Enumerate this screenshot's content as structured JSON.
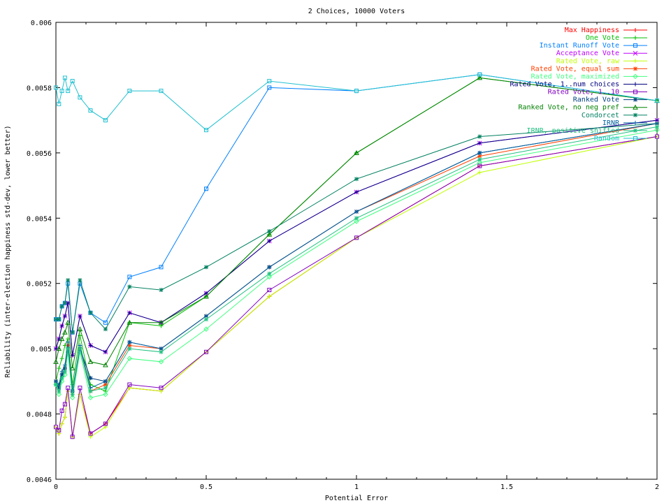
{
  "chart_data": {
    "type": "line",
    "title": "2 Choices, 10000 Voters",
    "xlabel": "Potential Error",
    "ylabel": "Reliability (inter-election happiness std-dev, lower better)",
    "xlim": [
      0,
      2
    ],
    "ylim": [
      0.0046,
      0.006
    ],
    "xticks": [
      "0",
      "0.5",
      "1",
      "1.5",
      "2"
    ],
    "yticks": [
      "0.0046",
      "0.0048",
      "0.005",
      "0.0052",
      "0.0054",
      "0.0056",
      "0.0058",
      "0.006"
    ],
    "grid": false,
    "legend_position": "top-right",
    "x": [
      0,
      0.01,
      0.02,
      0.03,
      0.04,
      0.055,
      0.08,
      0.115,
      0.165,
      0.245,
      0.35,
      0.5,
      0.71,
      1.0,
      1.41,
      2.0
    ],
    "series": [
      {
        "name": "Max Happiness",
        "color": "#ff0000",
        "marker": "plus",
        "values": [
          0.00476,
          0.00474,
          0.00477,
          0.00479,
          0.00487,
          0.00473,
          0.00486,
          0.00474,
          0.00477,
          0.00488,
          0.00487,
          0.00499,
          0.00516,
          0.00534,
          0.00556,
          0.00565
        ]
      },
      {
        "name": "One Vote",
        "color": "#00c000",
        "marker": "plus",
        "values": [
          0.0049,
          0.00494,
          0.00497,
          0.00501,
          0.00503,
          0.00489,
          0.00504,
          0.00489,
          0.00487,
          0.00508,
          0.00507,
          0.00516,
          0.00535,
          0.0056,
          0.00583,
          0.00576
        ]
      },
      {
        "name": "Instant Runoff Vote",
        "color": "#0080ff",
        "marker": "square",
        "values": [
          0.00509,
          0.00509,
          0.00513,
          0.00514,
          0.0052,
          0.00505,
          0.0052,
          0.00511,
          0.00508,
          0.00522,
          0.00525,
          0.00549,
          0.0058,
          0.00579,
          0.00584,
          0.00576
        ]
      },
      {
        "name": "Acceptance Vote",
        "color": "#c000ff",
        "marker": "x",
        "values": [
          0.005,
          0.00503,
          0.00507,
          0.0051,
          0.00514,
          0.00498,
          0.0051,
          0.00501,
          0.00499,
          0.00511,
          0.00508,
          0.00517,
          0.00533,
          0.00548,
          0.00563,
          0.0057
        ]
      },
      {
        "name": "Rated Vote, raw",
        "color": "#c0ff00",
        "marker": "plus",
        "values": [
          0.00476,
          0.00474,
          0.00477,
          0.00479,
          0.00487,
          0.00473,
          0.00486,
          0.00473,
          0.00476,
          0.00488,
          0.00487,
          0.00499,
          0.00516,
          0.00534,
          0.00554,
          0.00565
        ]
      },
      {
        "name": "Rated Vote, equal sum",
        "color": "#ff4000",
        "marker": "star",
        "values": [
          0.0049,
          0.00489,
          0.00492,
          0.00494,
          0.00501,
          0.00486,
          0.005,
          0.00487,
          0.00489,
          0.00501,
          0.005,
          0.0051,
          0.00525,
          0.00542,
          0.00559,
          0.00569
        ]
      },
      {
        "name": "Rated Vote, maximized",
        "color": "#40ff80",
        "marker": "diamond",
        "values": [
          0.00489,
          0.00486,
          0.0049,
          0.00492,
          0.00499,
          0.00485,
          0.00499,
          0.00485,
          0.00486,
          0.00497,
          0.00496,
          0.00506,
          0.00522,
          0.00539,
          0.00557,
          0.00567
        ]
      },
      {
        "name": "Rated Vote, 1..num choices",
        "color": "#000080",
        "marker": "plus",
        "values": [
          0.005,
          0.00503,
          0.00507,
          0.0051,
          0.00514,
          0.00498,
          0.0051,
          0.00501,
          0.00499,
          0.00511,
          0.00508,
          0.00517,
          0.00533,
          0.00548,
          0.00563,
          0.0057
        ]
      },
      {
        "name": "Rated Vote, 1..10",
        "color": "#8000c0",
        "marker": "square",
        "values": [
          0.00476,
          0.00475,
          0.00481,
          0.00483,
          0.00488,
          0.00473,
          0.00488,
          0.00474,
          0.00477,
          0.00489,
          0.00488,
          0.00499,
          0.00518,
          0.00534,
          0.00556,
          0.00565
        ]
      },
      {
        "name": "Ranked Vote",
        "color": "#004080",
        "marker": "star",
        "values": [
          0.0049,
          0.00488,
          0.00492,
          0.00494,
          0.005,
          0.00487,
          0.005,
          0.00491,
          0.0049,
          0.00502,
          0.005,
          0.0051,
          0.00525,
          0.00542,
          0.0056,
          0.00569
        ]
      },
      {
        "name": "Ranked Vote, no neg pref",
        "color": "#008000",
        "marker": "triangle",
        "values": [
          0.00496,
          0.005,
          0.00503,
          0.00505,
          0.00508,
          0.00494,
          0.00506,
          0.00496,
          0.00495,
          0.00508,
          0.00508,
          0.00516,
          0.00535,
          0.0056,
          0.00583,
          0.00576
        ]
      },
      {
        "name": "Condorcet",
        "color": "#008060",
        "marker": "star",
        "values": [
          0.00509,
          0.00509,
          0.00513,
          0.00514,
          0.00521,
          0.00505,
          0.00521,
          0.00511,
          0.00506,
          0.00519,
          0.00518,
          0.00525,
          0.00536,
          0.00552,
          0.00565,
          0.00569
        ]
      },
      {
        "name": "IRNR",
        "color": "#0060a0",
        "marker": "plus",
        "values": [
          0.0049,
          0.00489,
          0.00493,
          0.00495,
          0.00502,
          0.00487,
          0.00501,
          0.00488,
          0.0049,
          0.00502,
          0.005,
          0.0051,
          0.00525,
          0.00542,
          0.0056,
          0.00569
        ]
      },
      {
        "name": "IRNR, positive shifted",
        "color": "#20c080",
        "marker": "star",
        "values": [
          0.00489,
          0.00487,
          0.00491,
          0.00493,
          0.005,
          0.00486,
          0.005,
          0.00487,
          0.00488,
          0.005,
          0.00499,
          0.00509,
          0.00523,
          0.0054,
          0.00558,
          0.00568
        ]
      },
      {
        "name": "Random",
        "color": "#20c0d0",
        "marker": "square",
        "values": [
          0.0058,
          0.00575,
          0.00579,
          0.00583,
          0.00579,
          0.00582,
          0.00577,
          0.00573,
          0.0057,
          0.00579,
          0.00579,
          0.00567,
          0.00582,
          0.00579,
          0.00584,
          0.00576
        ]
      }
    ]
  }
}
